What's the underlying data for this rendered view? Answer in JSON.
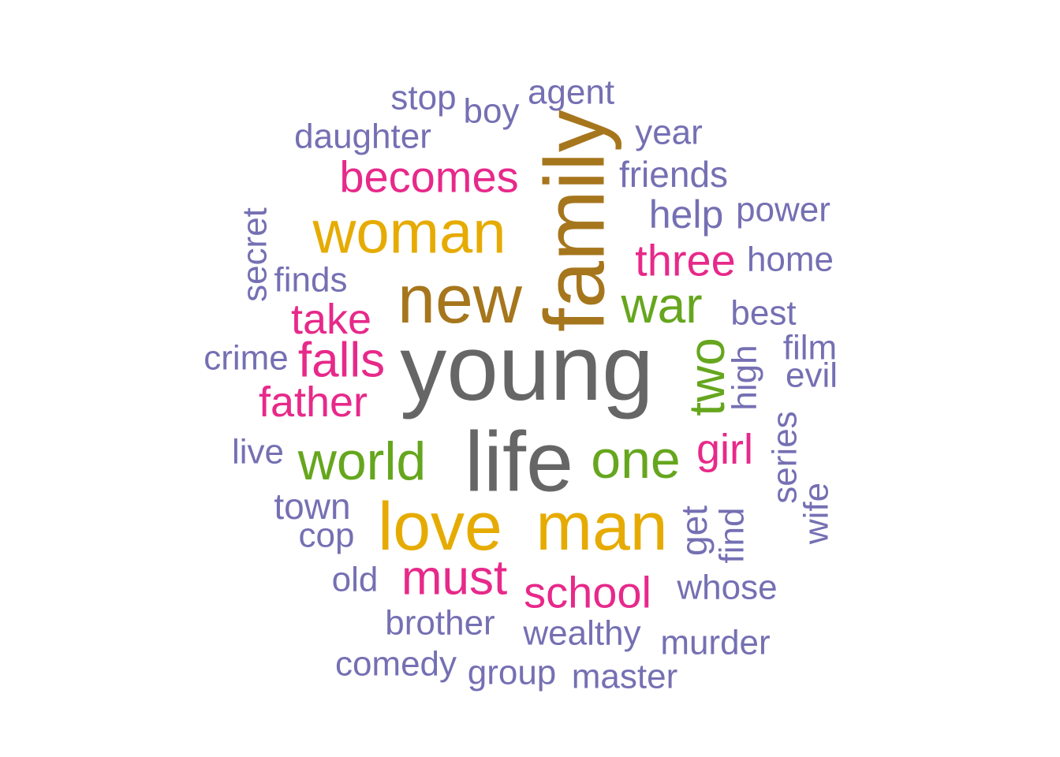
{
  "chart_data": {
    "type": "wordcloud",
    "title": "",
    "palette": {
      "gray": "#666666",
      "brown": "#A6761D",
      "gold": "#E6AB02",
      "green": "#66A61E",
      "magenta": "#E7298A",
      "purple": "#7570B3"
    },
    "words": [
      {
        "text": "young",
        "freq": 100,
        "color": "gray",
        "rotate": false
      },
      {
        "text": "life",
        "freq": 95,
        "color": "gray",
        "rotate": false
      },
      {
        "text": "family",
        "freq": 80,
        "color": "brown",
        "rotate": true
      },
      {
        "text": "new",
        "freq": 78,
        "color": "brown",
        "rotate": false
      },
      {
        "text": "love",
        "freq": 72,
        "color": "gold",
        "rotate": false
      },
      {
        "text": "man",
        "freq": 72,
        "color": "gold",
        "rotate": false
      },
      {
        "text": "woman",
        "freq": 68,
        "color": "gold",
        "rotate": false
      },
      {
        "text": "world",
        "freq": 60,
        "color": "green",
        "rotate": false
      },
      {
        "text": "one",
        "freq": 60,
        "color": "green",
        "rotate": false
      },
      {
        "text": "war",
        "freq": 56,
        "color": "green",
        "rotate": false
      },
      {
        "text": "two",
        "freq": 56,
        "color": "green",
        "rotate": true
      },
      {
        "text": "falls",
        "freq": 52,
        "color": "magenta",
        "rotate": false
      },
      {
        "text": "must",
        "freq": 52,
        "color": "magenta",
        "rotate": false
      },
      {
        "text": "becomes",
        "freq": 50,
        "color": "magenta",
        "rotate": false
      },
      {
        "text": "three",
        "freq": 50,
        "color": "magenta",
        "rotate": false
      },
      {
        "text": "school",
        "freq": 50,
        "color": "magenta",
        "rotate": false
      },
      {
        "text": "father",
        "freq": 48,
        "color": "magenta",
        "rotate": false
      },
      {
        "text": "take",
        "freq": 48,
        "color": "magenta",
        "rotate": false
      },
      {
        "text": "girl",
        "freq": 48,
        "color": "magenta",
        "rotate": false
      },
      {
        "text": "help",
        "freq": 44,
        "color": "purple",
        "rotate": false
      },
      {
        "text": "town",
        "freq": 42,
        "color": "purple",
        "rotate": false
      },
      {
        "text": "friends",
        "freq": 42,
        "color": "purple",
        "rotate": false
      },
      {
        "text": "get",
        "freq": 42,
        "color": "purple",
        "rotate": true
      },
      {
        "text": "daughter",
        "freq": 40,
        "color": "purple",
        "rotate": false
      },
      {
        "text": "stop",
        "freq": 40,
        "color": "purple",
        "rotate": false
      },
      {
        "text": "boy",
        "freq": 40,
        "color": "purple",
        "rotate": false
      },
      {
        "text": "agent",
        "freq": 40,
        "color": "purple",
        "rotate": false
      },
      {
        "text": "year",
        "freq": 40,
        "color": "purple",
        "rotate": false
      },
      {
        "text": "power",
        "freq": 40,
        "color": "purple",
        "rotate": false
      },
      {
        "text": "home",
        "freq": 40,
        "color": "purple",
        "rotate": false
      },
      {
        "text": "secret",
        "freq": 40,
        "color": "purple",
        "rotate": true
      },
      {
        "text": "finds",
        "freq": 40,
        "color": "purple",
        "rotate": false
      },
      {
        "text": "best",
        "freq": 40,
        "color": "purple",
        "rotate": false
      },
      {
        "text": "crime",
        "freq": 40,
        "color": "purple",
        "rotate": false
      },
      {
        "text": "film",
        "freq": 40,
        "color": "purple",
        "rotate": false
      },
      {
        "text": "evil",
        "freq": 40,
        "color": "purple",
        "rotate": false
      },
      {
        "text": "high",
        "freq": 40,
        "color": "purple",
        "rotate": true
      },
      {
        "text": "live",
        "freq": 40,
        "color": "purple",
        "rotate": false
      },
      {
        "text": "series",
        "freq": 40,
        "color": "purple",
        "rotate": true
      },
      {
        "text": "wife",
        "freq": 40,
        "color": "purple",
        "rotate": true
      },
      {
        "text": "cop",
        "freq": 40,
        "color": "purple",
        "rotate": false
      },
      {
        "text": "find",
        "freq": 40,
        "color": "purple",
        "rotate": true
      },
      {
        "text": "old",
        "freq": 40,
        "color": "purple",
        "rotate": false
      },
      {
        "text": "whose",
        "freq": 40,
        "color": "purple",
        "rotate": false
      },
      {
        "text": "brother",
        "freq": 40,
        "color": "purple",
        "rotate": false
      },
      {
        "text": "wealthy",
        "freq": 40,
        "color": "purple",
        "rotate": false
      },
      {
        "text": "murder",
        "freq": 40,
        "color": "purple",
        "rotate": false
      },
      {
        "text": "comedy",
        "freq": 40,
        "color": "purple",
        "rotate": false
      },
      {
        "text": "group",
        "freq": 40,
        "color": "purple",
        "rotate": false
      },
      {
        "text": "master",
        "freq": 40,
        "color": "purple",
        "rotate": false
      }
    ]
  }
}
